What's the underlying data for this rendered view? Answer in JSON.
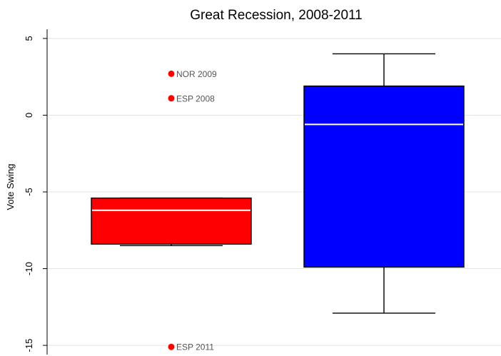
{
  "chart_data": {
    "type": "box",
    "title": "Great Recession, 2008-2011",
    "ylabel": "Vote Swing",
    "xlabel": "",
    "ylim": [
      -15.6,
      5.6
    ],
    "yticks": [
      5,
      0,
      -5,
      -10,
      -15
    ],
    "ytick_labels": [
      "5",
      "0",
      "-5",
      "-10",
      "-15"
    ],
    "grid": true,
    "boxes": [
      {
        "color": "#ff0000",
        "whisker_low": -8.5,
        "q1": -8.4,
        "median": -6.2,
        "q3": -5.4,
        "whisker_high": -5.4,
        "outliers": [
          {
            "label": "NOR 2009",
            "value": 2.7
          },
          {
            "label": "ESP 2008",
            "value": 1.1
          },
          {
            "label": "ESP 2011",
            "value": -15.1
          }
        ]
      },
      {
        "color": "#0000ff",
        "whisker_low": -12.9,
        "q1": -9.9,
        "median": -0.6,
        "q3": 1.9,
        "whisker_high": 4.0,
        "outliers": []
      }
    ]
  }
}
